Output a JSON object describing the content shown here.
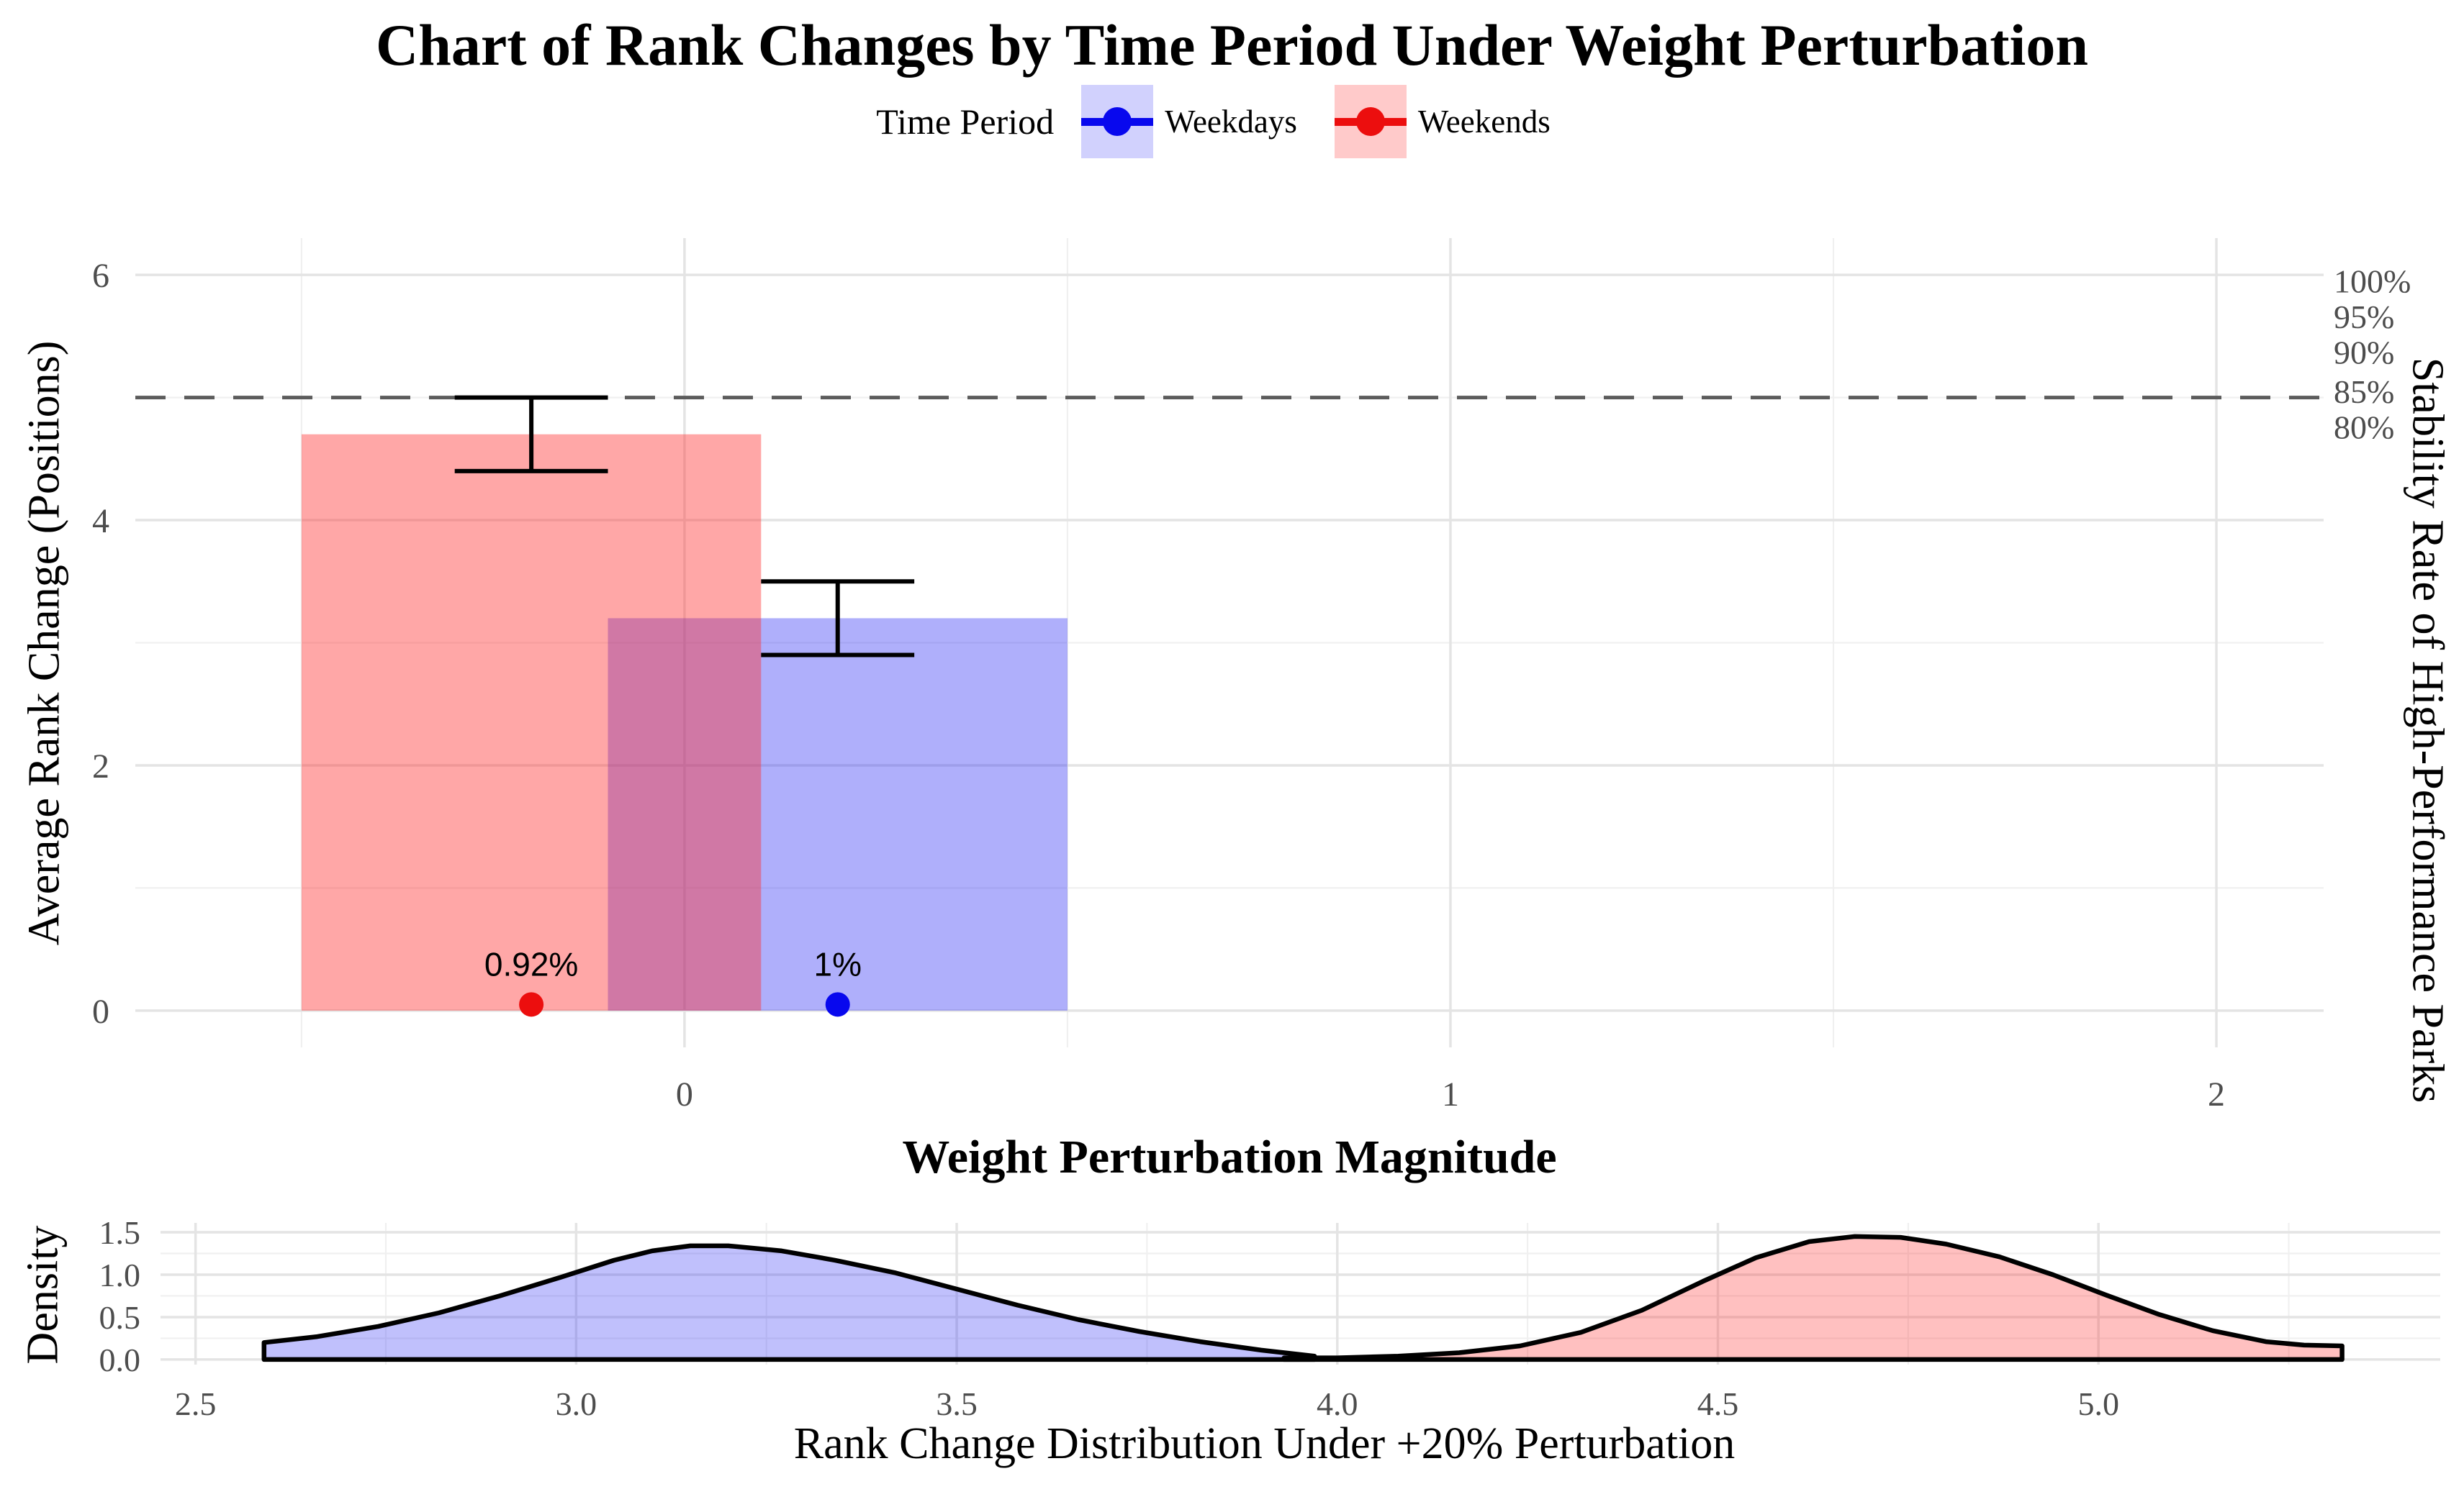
{
  "title": "Chart of Rank Changes by Time Period Under Weight Perturbation",
  "legend": {
    "title": "Time Period",
    "items": [
      {
        "label": "Weekdays",
        "key_fill": "rgba(45,45,245,0.22)",
        "marker_color": "#0808ee"
      },
      {
        "label": "Weekends",
        "key_fill": "rgba(255,45,45,0.25)",
        "marker_color": "#ec0e0e"
      }
    ]
  },
  "chart_data": [
    {
      "id": "main",
      "type": "bar",
      "title": "Chart of Rank Changes by Time Period Under Weight Perturbation",
      "xlabel": "Weight Perturbation Magnitude",
      "ylabel": "Average Rank Change (Positions)",
      "ylabel_right": "Stability Rate of High-Performance Parks",
      "xlim": [
        -0.717,
        2.14
      ],
      "ylim": [
        -0.3,
        6.3
      ],
      "x_major_ticks": [
        0,
        1,
        2
      ],
      "x_minor_ticks": [
        -0.5,
        0.5,
        1.5
      ],
      "y_major_ticks": [
        0,
        2,
        4,
        6
      ],
      "y_minor_ticks": [
        1,
        3,
        5
      ],
      "grid_major_color": "#e4e4e4",
      "grid_minor_color": "#f0f0f0",
      "tick_label_color": "#4d4d4d",
      "hline": {
        "y": 5,
        "color": "#5c5c5c",
        "dash": [
          42,
          26
        ],
        "width": 5
      },
      "bars": [
        {
          "series": "Weekdays",
          "x_from": -0.1,
          "x_to": 0.5,
          "value": 3.2,
          "fill": "rgba(45,45,245,0.38)",
          "error_x": 0.2,
          "error_min": 2.9,
          "error_max": 3.5
        },
        {
          "series": "Weekends",
          "x_from": -0.5,
          "x_to": 0.1,
          "value": 4.7,
          "fill": "rgba(255,45,45,0.42)",
          "error_x": -0.2,
          "error_min": 4.4,
          "error_max": 5.0
        }
      ],
      "error_cap_halfwidth": 0.1,
      "points": [
        {
          "series": "Weekends",
          "x": -0.2,
          "y": 0.05,
          "label": "0.92%",
          "color": "#ec0e0e"
        },
        {
          "series": "Weekdays",
          "x": 0.2,
          "y": 0.05,
          "label": "1%",
          "color": "#0808ee"
        }
      ],
      "right_axis_labels": [
        {
          "text": "100%",
          "y": 5.95
        },
        {
          "text": "95%",
          "y": 5.66
        },
        {
          "text": "90%",
          "y": 5.37
        },
        {
          "text": "85%",
          "y": 5.05
        },
        {
          "text": "80%",
          "y": 4.76
        }
      ],
      "legend_position": "top"
    },
    {
      "id": "density",
      "type": "area",
      "xlabel": "Rank Change Distribution Under +20% Perturbation",
      "ylabel": "Density",
      "xlim": [
        2.454,
        5.449
      ],
      "ylim": [
        -0.06,
        1.61
      ],
      "x_major_ticks": [
        2.5,
        3.0,
        3.5,
        4.0,
        4.5,
        5.0
      ],
      "x_minor_ticks": [
        2.75,
        3.25,
        3.75,
        4.25,
        4.75,
        5.25
      ],
      "y_major_ticks": [
        0.0,
        0.5,
        1.0,
        1.5
      ],
      "y_minor_ticks": [
        0.25,
        0.75,
        1.25
      ],
      "grid_major_color": "#e4e4e4",
      "grid_minor_color": "#f0f0f0",
      "tick_label_color": "#4d4d4d",
      "series": [
        {
          "name": "Weekdays",
          "fill": "rgba(45,45,245,0.30)",
          "stroke": "#000000",
          "peak_x": 3.15,
          "peak_y": 1.35,
          "points": [
            [
              2.59,
              0.2
            ],
            [
              2.66,
              0.27
            ],
            [
              2.74,
              0.39
            ],
            [
              2.82,
              0.55
            ],
            [
              2.9,
              0.75
            ],
            [
              2.98,
              0.97
            ],
            [
              3.05,
              1.17
            ],
            [
              3.1,
              1.28
            ],
            [
              3.15,
              1.34
            ],
            [
              3.2,
              1.34
            ],
            [
              3.27,
              1.28
            ],
            [
              3.34,
              1.17
            ],
            [
              3.42,
              1.02
            ],
            [
              3.5,
              0.83
            ],
            [
              3.58,
              0.64
            ],
            [
              3.66,
              0.47
            ],
            [
              3.74,
              0.33
            ],
            [
              3.82,
              0.21
            ],
            [
              3.9,
              0.11
            ],
            [
              3.97,
              0.04
            ]
          ]
        },
        {
          "name": "Weekends",
          "fill": "rgba(255,45,45,0.30)",
          "stroke": "#000000",
          "peak_x": 4.68,
          "peak_y": 1.45,
          "points": [
            [
              3.93,
              0.02
            ],
            [
              4.0,
              0.02
            ],
            [
              4.08,
              0.04
            ],
            [
              4.16,
              0.08
            ],
            [
              4.24,
              0.16
            ],
            [
              4.32,
              0.32
            ],
            [
              4.4,
              0.58
            ],
            [
              4.48,
              0.92
            ],
            [
              4.55,
              1.2
            ],
            [
              4.62,
              1.39
            ],
            [
              4.68,
              1.45
            ],
            [
              4.74,
              1.44
            ],
            [
              4.8,
              1.36
            ],
            [
              4.87,
              1.21
            ],
            [
              4.94,
              1.0
            ],
            [
              5.01,
              0.76
            ],
            [
              5.08,
              0.53
            ],
            [
              5.15,
              0.34
            ],
            [
              5.22,
              0.21
            ],
            [
              5.27,
              0.17
            ],
            [
              5.32,
              0.16
            ]
          ]
        }
      ]
    }
  ]
}
